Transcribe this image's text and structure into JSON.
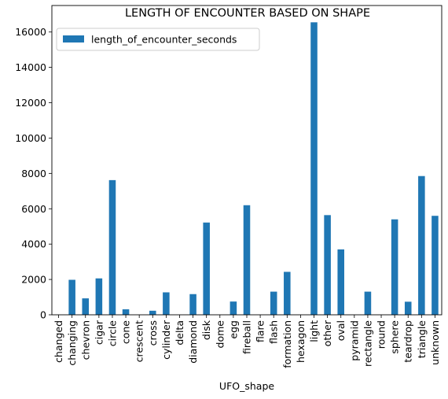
{
  "chart_data": {
    "type": "bar",
    "title": "LENGTH OF ENCOUNTER BASED ON SHAPE",
    "xlabel": "UFO_shape",
    "ylabel": "",
    "ylim": [
      0,
      17500
    ],
    "yticks": [
      0,
      2000,
      4000,
      6000,
      8000,
      10000,
      12000,
      14000,
      16000
    ],
    "grid": false,
    "legend_position": "top-left",
    "bar_color": "#1f77b4",
    "categories": [
      "changed",
      "changing",
      "chevron",
      "cigar",
      "circle",
      "cone",
      "crescent",
      "cross",
      "cylinder",
      "delta",
      "diamond",
      "disk",
      "dome",
      "egg",
      "fireball",
      "flare",
      "flash",
      "formation",
      "hexagon",
      "light",
      "other",
      "oval",
      "pyramid",
      "rectangle",
      "round",
      "sphere",
      "teardrop",
      "triangle",
      "unknown"
    ],
    "series": [
      {
        "name": "length_of_encounter_seconds",
        "values": [
          0,
          1980,
          930,
          2060,
          7620,
          310,
          0,
          230,
          1270,
          0,
          1170,
          5220,
          0,
          750,
          6200,
          0,
          1310,
          2430,
          0,
          16550,
          5640,
          3700,
          0,
          1310,
          0,
          5400,
          740,
          7850,
          5600
        ]
      }
    ]
  }
}
